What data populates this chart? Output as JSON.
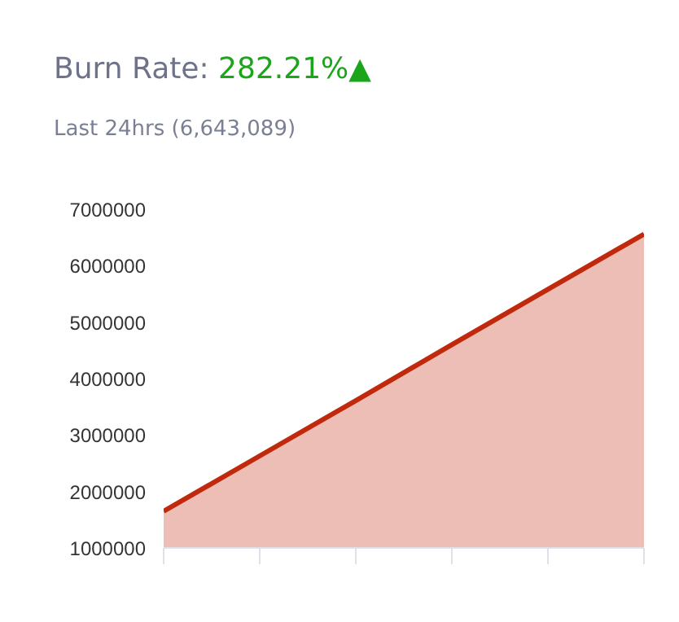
{
  "chart_data": {
    "type": "area",
    "title": "Burn Rate:",
    "subtitle": "Last 24hrs (6,643,089)",
    "annotations": [
      "282.21%▲"
    ],
    "categories": [
      null,
      null,
      null,
      null,
      null,
      null
    ],
    "series": [
      {
        "color": "#c0290b",
        "values": [
          1650000,
          2630000,
          3610000,
          4600000,
          5580000,
          6560000
        ]
      }
    ],
    "ylim": [
      1000000,
      7000000
    ],
    "yticks": [
      1000000,
      2000000,
      3000000,
      4000000,
      5000000,
      6000000,
      7000000
    ],
    "grid": false,
    "tick_labels": "y"
  }
}
